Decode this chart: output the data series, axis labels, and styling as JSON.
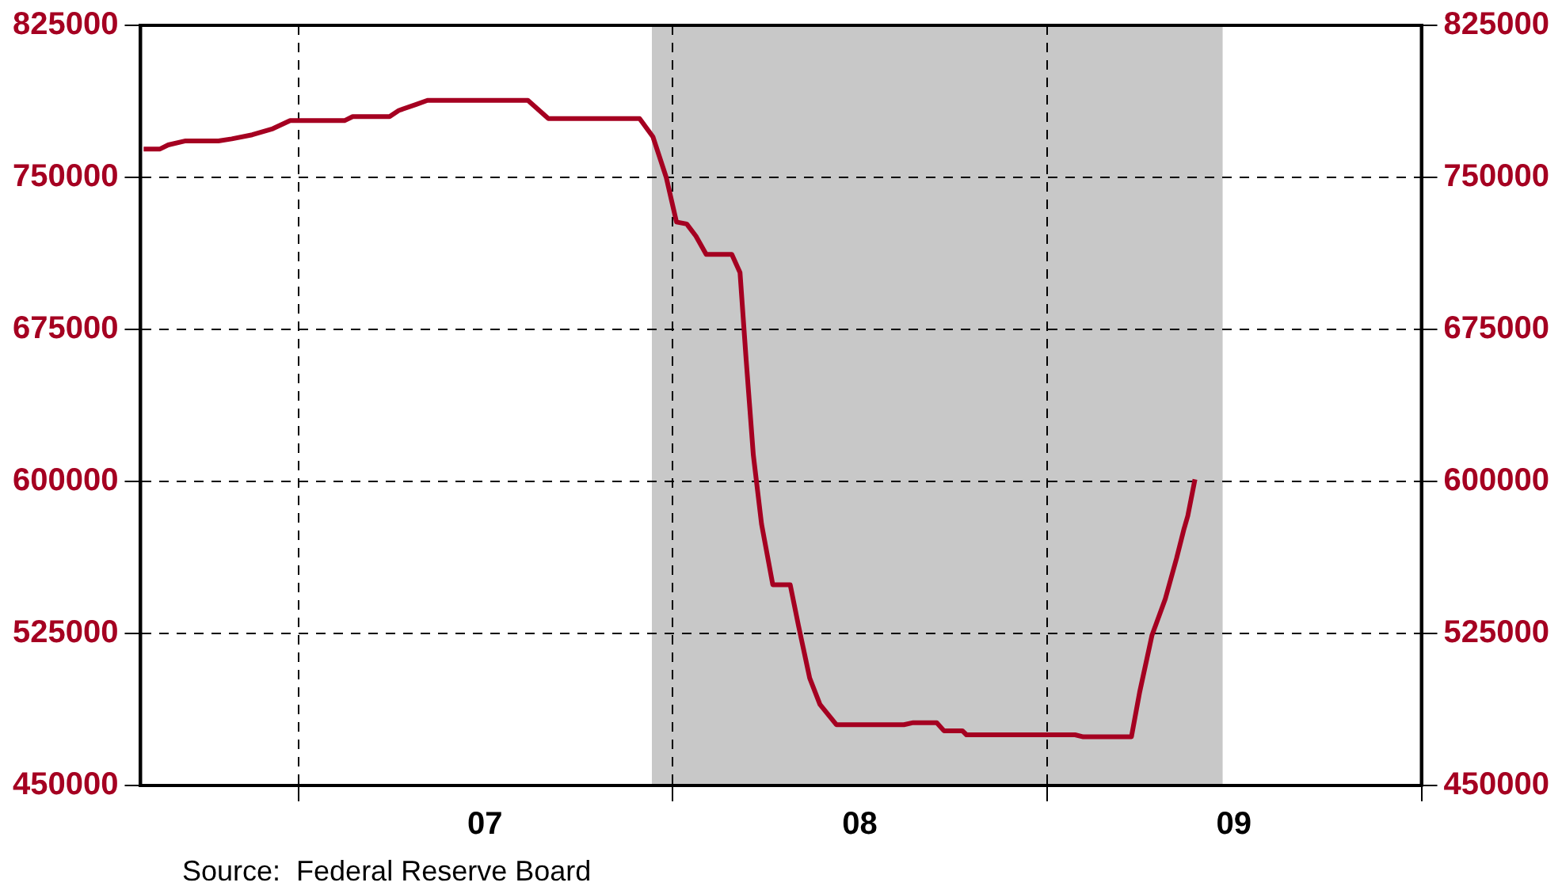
{
  "chart_data": {
    "type": "line",
    "annotations": [
      "Source:  Federal Reserve Board"
    ],
    "x": [
      "2006-08-03",
      "2006-08-19",
      "2006-08-27",
      "2006-09-13",
      "2006-10-15",
      "2006-10-28",
      "2006-11-17",
      "2006-12-07",
      "2006-12-24",
      "2007-02-15",
      "2007-02-23",
      "2007-03-31",
      "2007-04-09",
      "2007-04-26",
      "2007-05-07",
      "2007-08-13",
      "2007-09-02",
      "2007-11-30",
      "2007-12-13",
      "2007-12-26",
      "2008-01-05",
      "2008-01-15",
      "2008-01-24",
      "2008-02-03",
      "2008-02-28",
      "2008-03-07",
      "2008-03-13",
      "2008-03-20",
      "2008-03-28",
      "2008-04-08",
      "2008-04-25",
      "2008-05-03",
      "2008-05-14",
      "2008-05-24",
      "2008-06-09",
      "2008-08-14",
      "2008-08-23",
      "2008-09-15",
      "2008-09-22",
      "2008-10-10",
      "2008-10-14",
      "2009-01-28",
      "2009-02-05",
      "2009-03-24",
      "2009-04-01",
      "2009-04-13",
      "2009-04-26",
      "2009-05-07",
      "2009-05-14",
      "2009-05-18",
      "2009-05-25"
    ],
    "series": [
      {
        "color": "#a50021",
        "values": [
          764000,
          764000,
          766000,
          768000,
          768000,
          769000,
          771000,
          774000,
          778000,
          778000,
          780000,
          780000,
          783000,
          786000,
          788000,
          788000,
          779000,
          779000,
          770000,
          750000,
          728000,
          727000,
          721000,
          712000,
          712000,
          703000,
          660000,
          613000,
          579000,
          549000,
          549000,
          529000,
          503000,
          490000,
          480000,
          480000,
          481000,
          481000,
          477000,
          477000,
          475000,
          475000,
          474000,
          474000,
          496000,
          524000,
          542000,
          562000,
          576000,
          583000,
          601000
        ]
      }
    ],
    "xlim": [
      "2006-07-31",
      "2010-01-01"
    ],
    "xticks": [
      {
        "value": "2007-01-01",
        "label": null
      },
      {
        "value": "2007-07-02",
        "label": "07"
      },
      {
        "value": "2008-01-01",
        "label": null
      },
      {
        "value": "2008-07-02",
        "label": "08"
      },
      {
        "value": "2009-01-01",
        "label": null
      },
      {
        "value": "2009-07-02",
        "label": "09"
      },
      {
        "value": "2010-01-01",
        "label": null
      }
    ],
    "ylim": [
      450000,
      825000
    ],
    "yticks": [
      450000,
      525000,
      600000,
      675000,
      750000,
      825000
    ],
    "y2lim": [
      450000,
      825000
    ],
    "y2ticks": [
      450000,
      525000,
      600000,
      675000,
      750000,
      825000
    ],
    "bands": [
      {
        "axis": "x",
        "from": "2007-12-12",
        "to": "2009-06-21",
        "color": "#c8c8c8"
      }
    ],
    "grid": true,
    "legend": false,
    "marker": "none",
    "line_style": "solid"
  }
}
